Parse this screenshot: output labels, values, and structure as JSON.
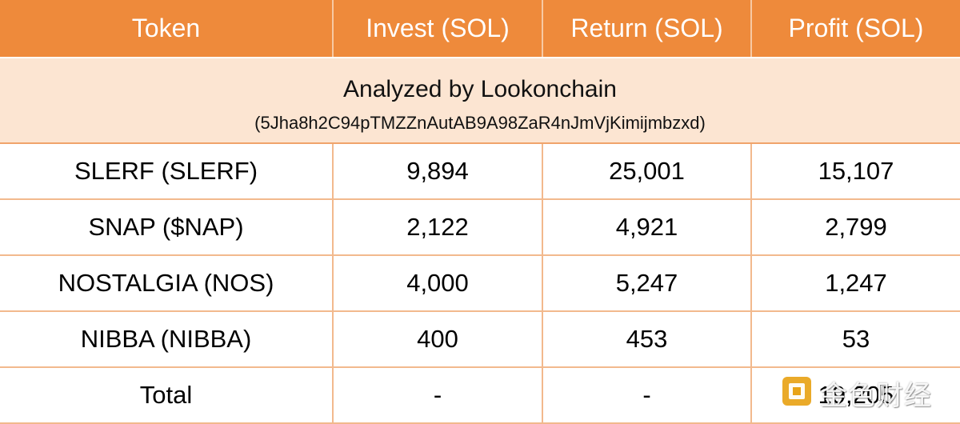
{
  "table": {
    "headers": [
      "Token",
      "Invest (SOL)",
      "Return (SOL)",
      "Profit (SOL)"
    ],
    "banner": {
      "title": "Analyzed by Lookonchain",
      "address": "(5Jha8h2C94pTMZZnAutAB9A98ZaR4nJmVjKimijmbzxd)"
    },
    "rows": [
      {
        "token": "SLERF (SLERF)",
        "invest": "9,894",
        "return": "25,001",
        "profit": "15,107"
      },
      {
        "token": "SNAP ($NAP)",
        "invest": "2,122",
        "return": "4,921",
        "profit": "2,799"
      },
      {
        "token": "NOSTALGIA (NOS)",
        "invest": "4,000",
        "return": "5,247",
        "profit": "1,247"
      },
      {
        "token": "NIBBA (NIBBA)",
        "invest": "400",
        "return": "453",
        "profit": "53"
      },
      {
        "token": "Total",
        "invest": "-",
        "return": "-",
        "profit": "19,205"
      }
    ]
  },
  "watermark": {
    "text": "金色财经",
    "icon": "golden-square-logo-icon",
    "color": "#e8a317"
  },
  "colors": {
    "header_bg": "#ee8a3b",
    "banner_bg": "#fce5d2",
    "grid_line": "#f2b98d"
  }
}
